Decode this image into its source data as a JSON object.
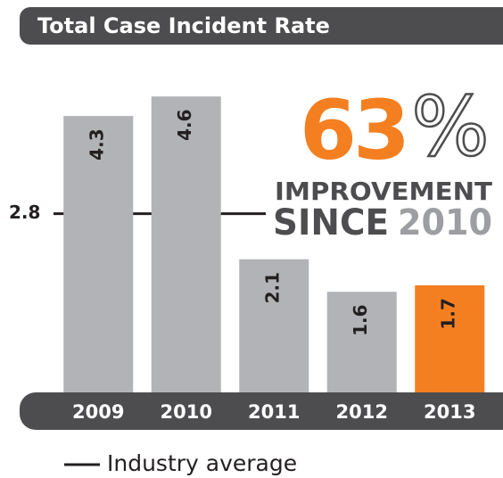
{
  "chart_data": {
    "type": "bar",
    "title": "Total Case Incident Rate",
    "categories": [
      "2009",
      "2010",
      "2011",
      "2012",
      "2013"
    ],
    "values": [
      4.3,
      4.6,
      2.1,
      1.6,
      1.7
    ],
    "colors": [
      "#b1b3b6",
      "#b1b3b6",
      "#b1b3b6",
      "#b1b3b6",
      "#f47f20"
    ],
    "ylim": [
      0,
      5
    ],
    "reference": {
      "value": 2.8,
      "label": "Industry average",
      "color": "#231f20"
    },
    "headline": {
      "number": "63",
      "unit": "%",
      "line1": "IMPROVEMENT",
      "line2a": "SINCE",
      "line2b": "2010"
    }
  }
}
